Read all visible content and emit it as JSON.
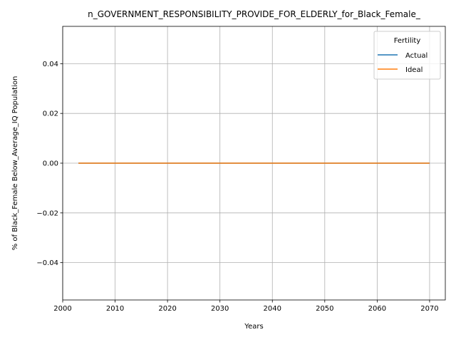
{
  "chart_data": {
    "type": "line",
    "title": "n_GOVERNMENT_RESPONSIBILITY_PROVIDE_FOR_ELDERLY_for_Black_Female_",
    "xlabel": "Years",
    "ylabel": "% of Black_Female Below_Average_IQ Population",
    "xlim": [
      2000,
      2073
    ],
    "ylim": [
      -0.055,
      0.055
    ],
    "xticks": [
      2000,
      2010,
      2020,
      2030,
      2040,
      2050,
      2060,
      2070
    ],
    "xtick_labels": [
      "2000",
      "2010",
      "2020",
      "2030",
      "2040",
      "2050",
      "2060",
      "2070"
    ],
    "yticks": [
      -0.04,
      -0.02,
      0.0,
      0.02,
      0.04
    ],
    "ytick_labels": [
      "−0.04",
      "−0.02",
      "0.00",
      "0.02",
      "0.04"
    ],
    "grid": true,
    "legend": {
      "title": "Fertility",
      "placement": "top-right"
    },
    "x": [
      2003,
      2010,
      2020,
      2030,
      2040,
      2050,
      2060,
      2070
    ],
    "series": [
      {
        "name": "Actual",
        "color": "#1f77b4",
        "values": [
          0,
          0,
          0,
          0,
          0,
          0,
          0,
          0
        ]
      },
      {
        "name": "Ideal",
        "color": "#ff7f0e",
        "values": [
          0,
          0,
          0,
          0,
          0,
          0,
          0,
          0
        ]
      }
    ]
  }
}
